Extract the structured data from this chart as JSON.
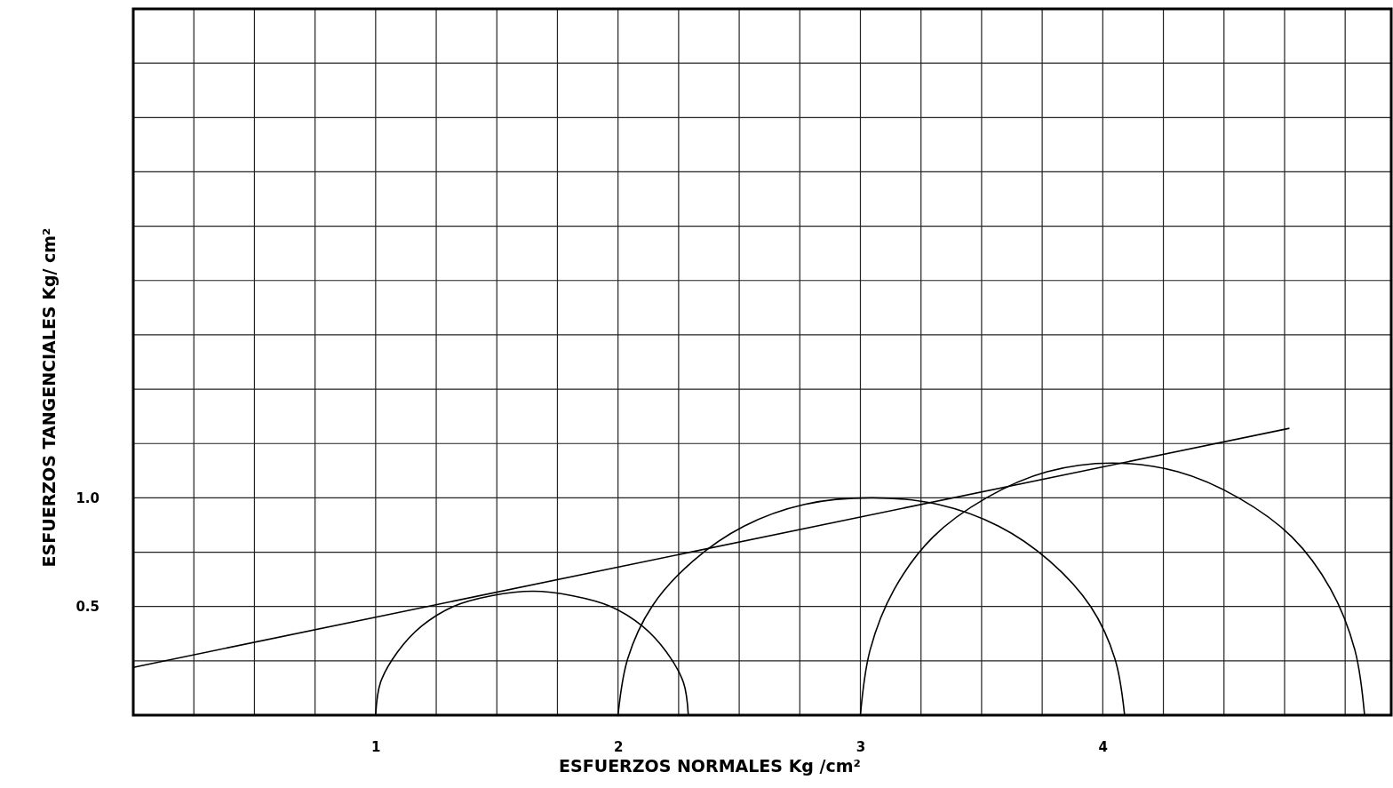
{
  "chart_data": {
    "type": "line",
    "xlabel": "ESFUERZOS NORMALES Kg /cm²",
    "ylabel": "ESFUERZOS TANGENCIALES Kg/ cm²",
    "xlim": [
      0,
      5.19
    ],
    "ylim": [
      0,
      3.25
    ],
    "grid": true,
    "marker": "none",
    "line_style": "solid",
    "xticks": [
      {
        "value": 0.25,
        "label": null
      },
      {
        "value": 0.5,
        "label": null
      },
      {
        "value": 0.75,
        "label": null
      },
      {
        "value": 1,
        "label": "1"
      },
      {
        "value": 1.25,
        "label": null
      },
      {
        "value": 1.5,
        "label": null
      },
      {
        "value": 1.75,
        "label": null
      },
      2,
      {
        "value": 2.25,
        "label": null
      },
      {
        "value": 2.5,
        "label": null
      },
      {
        "value": 2.75,
        "label": null
      },
      3,
      {
        "value": 3.25,
        "label": null
      },
      {
        "value": 3.5,
        "label": null
      },
      {
        "value": 3.75,
        "label": null
      },
      4,
      {
        "value": 4.25,
        "label": null
      },
      {
        "value": 4.5,
        "label": null
      },
      {
        "value": 4.75,
        "label": null
      },
      {
        "value": 5,
        "label": null
      }
    ],
    "yticks": [
      {
        "value": 0.25,
        "label": null
      },
      0.5,
      {
        "value": 0.75,
        "label": null
      },
      {
        "value": 1,
        "label": "1.0"
      },
      {
        "value": 1.25,
        "label": null
      },
      {
        "value": 1.5,
        "label": null
      },
      {
        "value": 1.75,
        "label": null
      },
      {
        "value": 2,
        "label": null
      },
      {
        "value": 2.25,
        "label": null
      },
      {
        "value": 2.5,
        "label": null
      },
      {
        "value": 2.75,
        "label": null
      },
      {
        "value": 3,
        "label": null
      }
    ],
    "series": [
      {
        "color": "#000000",
        "x": [
          1.0,
          1.02,
          1.09,
          1.19,
          1.32,
          1.48,
          1.65,
          1.81,
          1.97,
          2.1,
          2.2,
          2.27,
          2.29
        ],
        "values": [
          0,
          0.15,
          0.29,
          0.41,
          0.5,
          0.55,
          0.57,
          0.55,
          0.5,
          0.41,
          0.29,
          0.15,
          0
        ]
      },
      {
        "color": "#000000",
        "x": [
          2.0,
          2.04,
          2.14,
          2.31,
          2.52,
          2.77,
          3.05,
          3.32,
          3.57,
          3.78,
          3.95,
          4.05,
          4.09
        ],
        "values": [
          0,
          0.26,
          0.5,
          0.71,
          0.87,
          0.97,
          1.0,
          0.97,
          0.87,
          0.71,
          0.5,
          0.26,
          0
        ]
      },
      {
        "color": "#000000",
        "x": [
          3.0,
          3.04,
          3.14,
          3.3,
          3.52,
          3.77,
          4.04,
          4.31,
          4.56,
          4.78,
          4.94,
          5.04,
          5.08
        ],
        "values": [
          0,
          0.3,
          0.58,
          0.82,
          1.0,
          1.12,
          1.16,
          1.12,
          1.0,
          0.82,
          0.58,
          0.3,
          0
        ]
      },
      {
        "color": "#000000",
        "x": [
          0,
          4.77
        ],
        "values": [
          0.22,
          1.32
        ]
      }
    ]
  }
}
